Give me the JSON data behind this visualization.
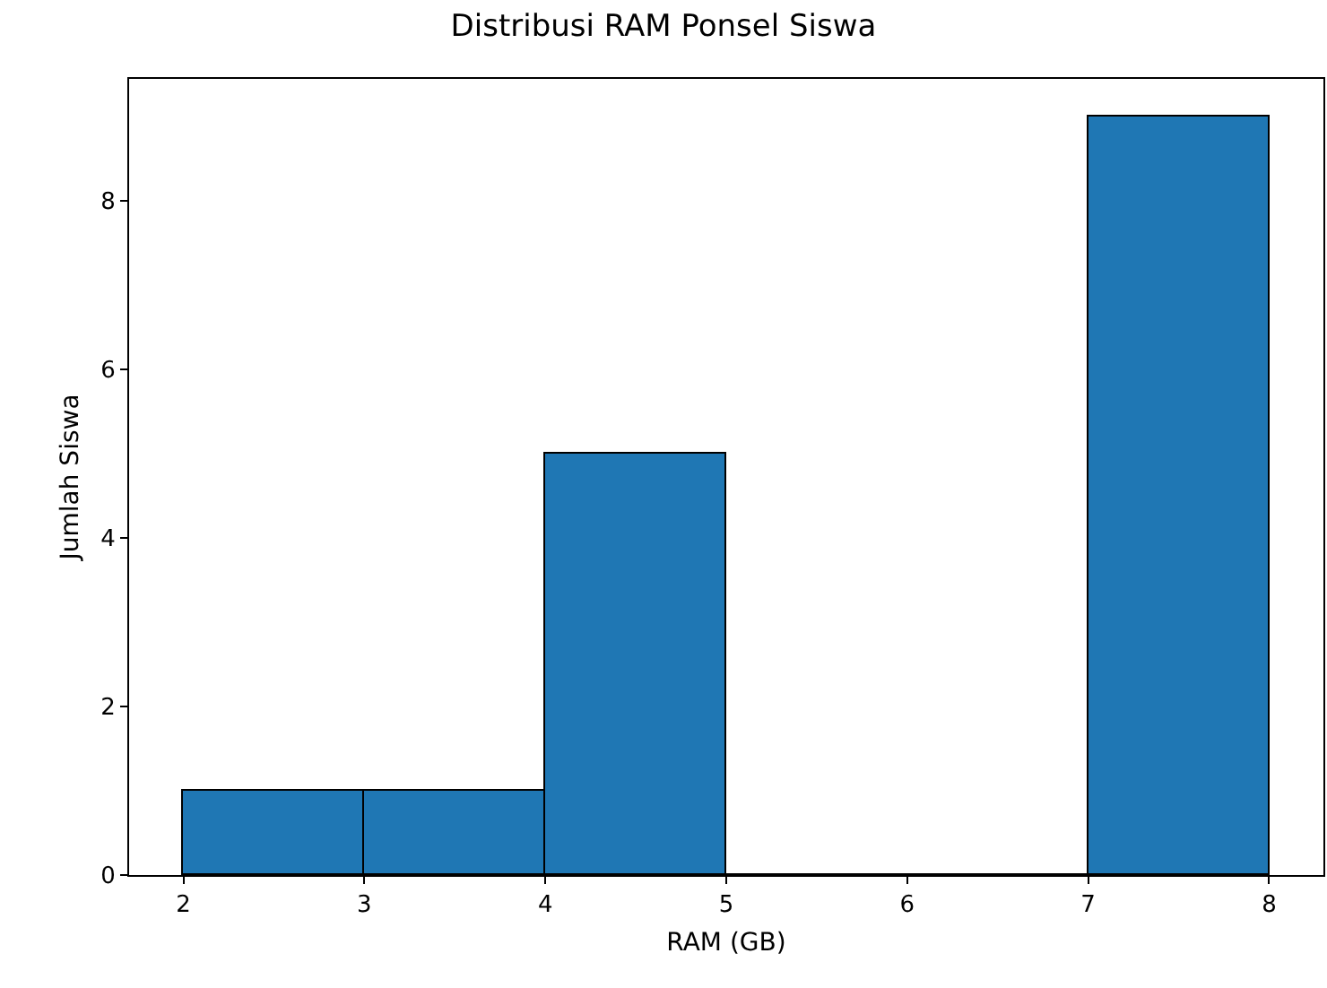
{
  "chart_data": {
    "type": "histogram",
    "title": "Distribusi RAM Ponsel Siswa",
    "xlabel": "RAM (GB)",
    "ylabel": "Jumlah Siswa",
    "bins": [
      2,
      3,
      4,
      5,
      6,
      7,
      8
    ],
    "values": [
      1,
      1,
      5,
      0,
      0,
      9
    ],
    "color": "#1f77b4",
    "xlim": [
      1.7,
      8.3
    ],
    "xticks": [
      2,
      3,
      4,
      5,
      6,
      7,
      8
    ],
    "ylim": [
      0,
      9.45
    ],
    "yticks": [
      0,
      2,
      4,
      6,
      8
    ],
    "legend": false
  }
}
